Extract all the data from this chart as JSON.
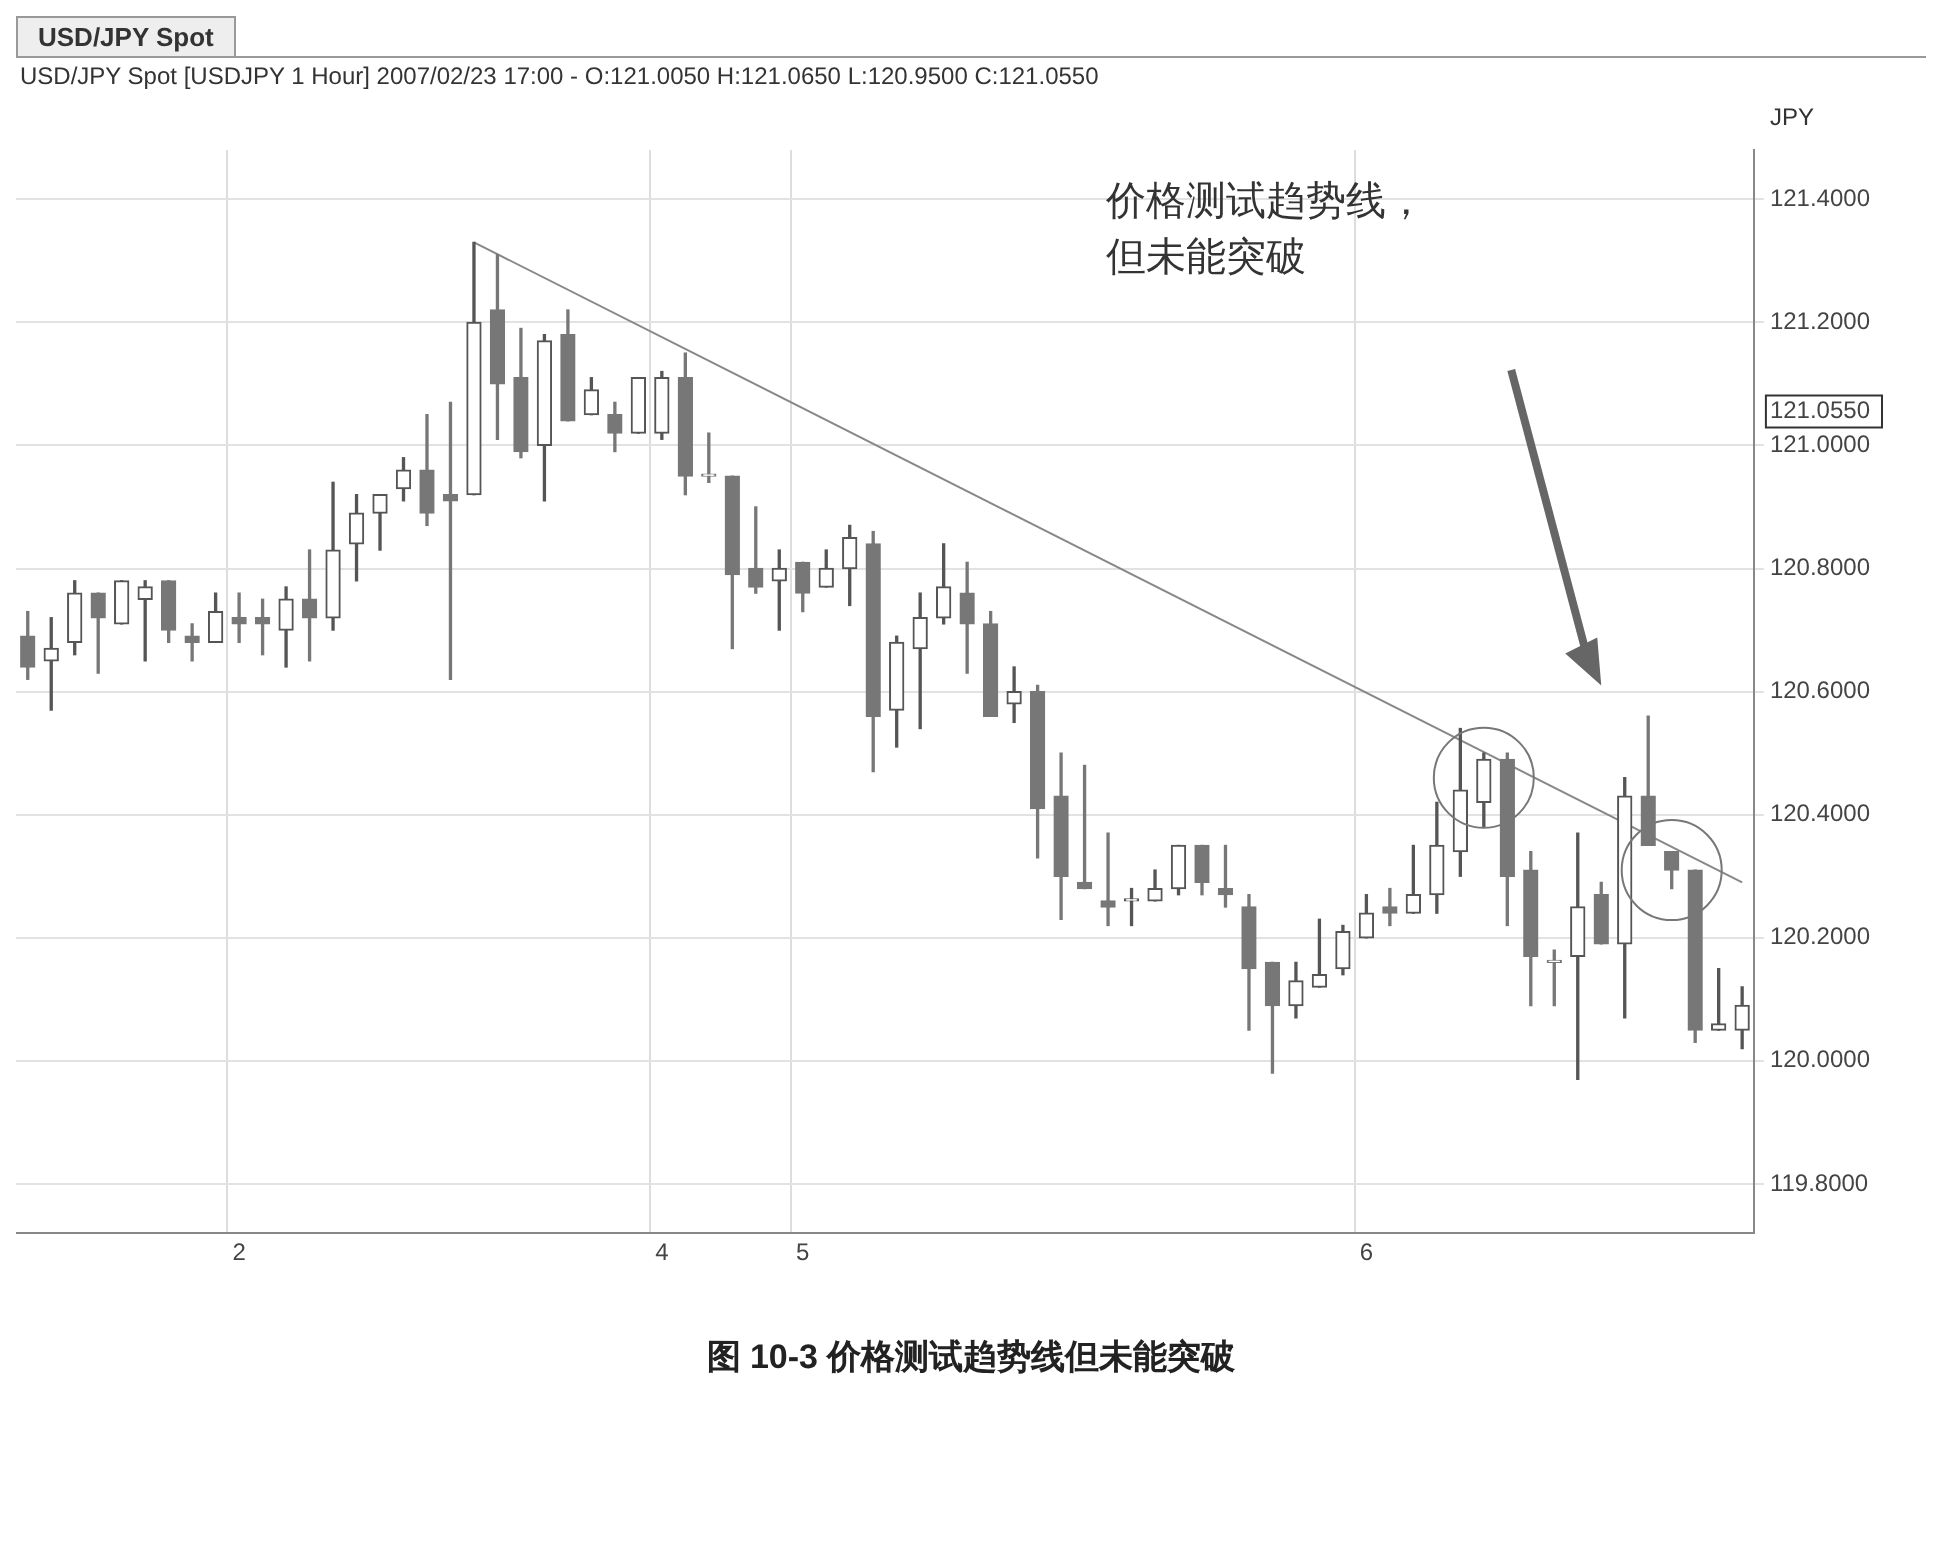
{
  "chart_data": {
    "type": "candlestick",
    "title": "USD/JPY Spot",
    "subtitle": "USD/JPY Spot [USDJPY  1 Hour] 2007/02/23 17:00 - O:121.0050 H:121.0650 L:120.9500 C:121.0550",
    "ylabel": "JPY",
    "categories": [
      null,
      null,
      null,
      null,
      null,
      null,
      null,
      null,
      null,
      "2",
      null,
      null,
      null,
      null,
      null,
      null,
      null,
      null,
      null,
      null,
      null,
      null,
      null,
      null,
      null,
      null,
      null,
      "4",
      null,
      null,
      null,
      null,
      null,
      "5",
      null,
      null,
      null,
      null,
      null,
      null,
      null,
      null,
      null,
      null,
      null,
      null,
      null,
      null,
      null,
      null,
      null,
      null,
      null,
      null,
      null,
      null,
      null,
      "6",
      null,
      null,
      null,
      null,
      null,
      null,
      null,
      null,
      null,
      null,
      null,
      null,
      null,
      null,
      null,
      null
    ],
    "ohlc": [
      [
        120.69,
        120.73,
        120.62,
        120.64
      ],
      [
        120.65,
        120.72,
        120.57,
        120.67
      ],
      [
        120.68,
        120.78,
        120.66,
        120.76
      ],
      [
        120.76,
        120.76,
        120.63,
        120.72
      ],
      [
        120.71,
        120.78,
        120.71,
        120.78
      ],
      [
        120.75,
        120.78,
        120.65,
        120.77
      ],
      [
        120.78,
        120.78,
        120.68,
        120.7
      ],
      [
        120.69,
        120.71,
        120.65,
        120.68
      ],
      [
        120.68,
        120.76,
        120.68,
        120.73
      ],
      [
        120.72,
        120.76,
        120.68,
        120.71
      ],
      [
        120.72,
        120.75,
        120.66,
        120.71
      ],
      [
        120.7,
        120.77,
        120.64,
        120.75
      ],
      [
        120.75,
        120.83,
        120.65,
        120.72
      ],
      [
        120.72,
        120.94,
        120.7,
        120.83
      ],
      [
        120.84,
        120.92,
        120.78,
        120.89
      ],
      [
        120.89,
        120.92,
        120.83,
        120.92
      ],
      [
        120.93,
        120.98,
        120.91,
        120.96
      ],
      [
        120.96,
        121.05,
        120.87,
        120.89
      ],
      [
        120.92,
        121.07,
        120.62,
        120.91
      ],
      [
        120.92,
        121.33,
        120.92,
        121.2
      ],
      [
        121.22,
        121.31,
        121.01,
        121.1
      ],
      [
        121.11,
        121.19,
        120.98,
        120.99
      ],
      [
        121.0,
        121.18,
        120.91,
        121.17
      ],
      [
        121.18,
        121.22,
        121.04,
        121.04
      ],
      [
        121.05,
        121.11,
        121.05,
        121.09
      ],
      [
        121.05,
        121.07,
        120.99,
        121.02
      ],
      [
        121.02,
        121.11,
        121.02,
        121.11
      ],
      [
        121.02,
        121.12,
        121.01,
        121.11
      ],
      [
        121.11,
        121.15,
        120.92,
        120.95
      ],
      [
        120.95,
        121.02,
        120.94,
        120.95
      ],
      [
        120.95,
        120.95,
        120.67,
        120.79
      ],
      [
        120.8,
        120.9,
        120.76,
        120.77
      ],
      [
        120.78,
        120.83,
        120.7,
        120.8
      ],
      [
        120.81,
        120.81,
        120.73,
        120.76
      ],
      [
        120.77,
        120.83,
        120.77,
        120.8
      ],
      [
        120.8,
        120.87,
        120.74,
        120.85
      ],
      [
        120.84,
        120.86,
        120.47,
        120.56
      ],
      [
        120.57,
        120.69,
        120.51,
        120.68
      ],
      [
        120.67,
        120.76,
        120.54,
        120.72
      ],
      [
        120.72,
        120.84,
        120.71,
        120.77
      ],
      [
        120.76,
        120.81,
        120.63,
        120.71
      ],
      [
        120.71,
        120.73,
        120.56,
        120.56
      ],
      [
        120.58,
        120.64,
        120.55,
        120.6
      ],
      [
        120.6,
        120.61,
        120.33,
        120.41
      ],
      [
        120.43,
        120.5,
        120.23,
        120.3
      ],
      [
        120.29,
        120.48,
        120.28,
        120.28
      ],
      [
        120.26,
        120.37,
        120.22,
        120.25
      ],
      [
        120.26,
        120.28,
        120.22,
        120.26
      ],
      [
        120.26,
        120.31,
        120.26,
        120.28
      ],
      [
        120.28,
        120.35,
        120.27,
        120.35
      ],
      [
        120.35,
        120.35,
        120.27,
        120.29
      ],
      [
        120.28,
        120.35,
        120.25,
        120.27
      ],
      [
        120.25,
        120.27,
        120.05,
        120.15
      ],
      [
        120.16,
        120.16,
        119.98,
        120.09
      ],
      [
        120.09,
        120.16,
        120.07,
        120.13
      ],
      [
        120.12,
        120.23,
        120.12,
        120.14
      ],
      [
        120.15,
        120.22,
        120.14,
        120.21
      ],
      [
        120.2,
        120.27,
        120.2,
        120.24
      ],
      [
        120.25,
        120.28,
        120.22,
        120.24
      ],
      [
        120.24,
        120.35,
        120.24,
        120.27
      ],
      [
        120.27,
        120.42,
        120.24,
        120.35
      ],
      [
        120.34,
        120.54,
        120.3,
        120.44
      ],
      [
        120.42,
        120.5,
        120.38,
        120.49
      ],
      [
        120.49,
        120.5,
        120.22,
        120.3
      ],
      [
        120.31,
        120.34,
        120.09,
        120.17
      ],
      [
        120.16,
        120.18,
        120.09,
        120.16
      ],
      [
        120.17,
        120.37,
        119.97,
        120.25
      ],
      [
        120.27,
        120.29,
        120.19,
        120.19
      ],
      [
        120.19,
        120.46,
        120.07,
        120.43
      ],
      [
        120.43,
        120.56,
        120.35,
        120.35
      ],
      [
        120.34,
        120.34,
        120.28,
        120.31
      ],
      [
        120.31,
        120.31,
        120.03,
        120.05
      ],
      [
        120.05,
        120.15,
        120.05,
        120.06
      ],
      [
        120.05,
        120.12,
        120.02,
        120.09
      ]
    ],
    "colors": [
      "#777777",
      "#555555",
      "#555555",
      "#777777",
      "#555555",
      "#555555",
      "#777777",
      "#777777",
      "#555555",
      "#777777",
      "#777777",
      "#555555",
      "#777777",
      "#555555",
      "#555555",
      "#555555",
      "#555555",
      "#777777",
      "#777777",
      "#555555",
      "#777777",
      "#777777",
      "#555555",
      "#777777",
      "#555555",
      "#777777",
      "#555555",
      "#555555",
      "#777777",
      "#777777",
      "#777777",
      "#777777",
      "#555555",
      "#777777",
      "#555555",
      "#555555",
      "#777777",
      "#555555",
      "#555555",
      "#555555",
      "#777777",
      "#777777",
      "#555555",
      "#777777",
      "#777777",
      "#777777",
      "#777777",
      "#555555",
      "#555555",
      "#555555",
      "#777777",
      "#777777",
      "#777777",
      "#777777",
      "#555555",
      "#555555",
      "#555555",
      "#555555",
      "#777777",
      "#555555",
      "#555555",
      "#555555",
      "#555555",
      "#777777",
      "#777777",
      "#777777",
      "#555555",
      "#777777",
      "#555555",
      "#777777",
      "#777777",
      "#777777",
      "#555555",
      "#555555"
    ],
    "series": [
      {
        "type": "line",
        "color": "#888888",
        "values": [
          null,
          null,
          null,
          null,
          null,
          null,
          null,
          null,
          null,
          null,
          null,
          null,
          null,
          null,
          null,
          null,
          null,
          null,
          null,
          121.33,
          null,
          null,
          null,
          null,
          null,
          null,
          null,
          null,
          null,
          null,
          null,
          null,
          null,
          null,
          null,
          null,
          null,
          null,
          null,
          null,
          null,
          null,
          null,
          null,
          null,
          null,
          null,
          null,
          null,
          null,
          null,
          null,
          null,
          null,
          null,
          null,
          null,
          null,
          null,
          null,
          null,
          null,
          null,
          null,
          null,
          null,
          null,
          null,
          null,
          null,
          null,
          null,
          null,
          120.29
        ]
      }
    ],
    "ylim": [
      119.72,
      121.48
    ],
    "yticks": [
      {
        "value": 119.8,
        "label": "119.8000"
      },
      {
        "value": 120,
        "label": "120.0000"
      },
      {
        "value": 120.2,
        "label": "120.2000"
      },
      {
        "value": 120.4,
        "label": "120.4000"
      },
      {
        "value": 120.6,
        "label": "120.6000"
      },
      {
        "value": 120.8,
        "label": "120.8000"
      },
      {
        "value": 121,
        "label": "121.0000"
      },
      {
        "value": 121.055,
        "label": "121.0550"
      },
      {
        "value": 121.2,
        "label": "121.2000"
      },
      {
        "value": 121.4,
        "label": "121.4000"
      }
    ],
    "grid": true,
    "annotations": [
      "价格测试趋势线，但未能突破",
      "图 10-3   价格测试趋势线但未能突破"
    ]
  }
}
